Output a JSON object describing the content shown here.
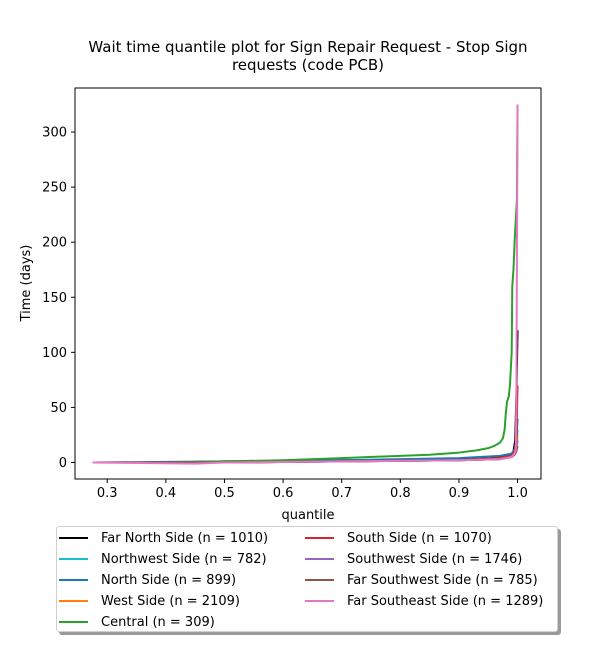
{
  "chart_data": {
    "type": "line",
    "title": "Wait time quantile plot for Sign Repair Request - Stop Sign",
    "title_line2": "requests (code PCB)",
    "xlabel": "quantile",
    "ylabel": "Time (days)",
    "xlim": [
      0.245,
      1.04
    ],
    "ylim": [
      -15,
      340
    ],
    "xticks": [
      0.3,
      0.4,
      0.5,
      0.6,
      0.7,
      0.8,
      0.9,
      1.0
    ],
    "xtick_labels": [
      "0.3",
      "0.4",
      "0.5",
      "0.6",
      "0.7",
      "0.8",
      "0.9",
      "1.0"
    ],
    "yticks": [
      0,
      50,
      100,
      150,
      200,
      250,
      300
    ],
    "ytick_labels": [
      "0",
      "50",
      "100",
      "150",
      "200",
      "250",
      "300"
    ],
    "grid": false,
    "legend_placement": "below plot, two columns",
    "series": [
      {
        "name": "Far North Side (n = 1010)",
        "color": "#000000",
        "x": [
          0.275,
          0.4,
          0.5,
          0.6,
          0.7,
          0.8,
          0.9,
          0.95,
          0.98,
          0.99,
          0.993,
          0.996,
          0.998,
          1.0
        ],
        "y": [
          0,
          0,
          1,
          1,
          2,
          2,
          3,
          4,
          6,
          8,
          10,
          20,
          60,
          120
        ]
      },
      {
        "name": "Northwest Side (n = 782)",
        "color": "#17becf",
        "x": [
          0.275,
          0.5,
          0.7,
          0.9,
          0.97,
          0.99,
          0.995,
          0.998,
          1.0
        ],
        "y": [
          0,
          0,
          1,
          2,
          3,
          5,
          8,
          15,
          30
        ]
      },
      {
        "name": "North Side (n = 899)",
        "color": "#1f77b4",
        "x": [
          0.275,
          0.5,
          0.7,
          0.9,
          0.97,
          0.99,
          0.995,
          0.998,
          1.0
        ],
        "y": [
          0,
          1,
          2,
          4,
          6,
          8,
          12,
          20,
          40
        ]
      },
      {
        "name": "West Side (n = 2109)",
        "color": "#ff7f0e",
        "x": [
          0.275,
          0.5,
          0.7,
          0.9,
          0.97,
          0.99,
          0.995,
          0.998,
          1.0
        ],
        "y": [
          0,
          0,
          1,
          2,
          4,
          6,
          9,
          14,
          25
        ]
      },
      {
        "name": "Central (n = 309)",
        "color": "#2ca02c",
        "x": [
          0.275,
          0.4,
          0.5,
          0.6,
          0.7,
          0.8,
          0.85,
          0.9,
          0.93,
          0.95,
          0.96,
          0.97,
          0.975,
          0.978,
          0.98,
          0.982,
          0.985,
          0.987,
          0.99,
          0.991,
          0.993,
          0.995,
          0.997,
          0.999,
          1.0
        ],
        "y": [
          0,
          0,
          1,
          2,
          4,
          6,
          7,
          9,
          11,
          13,
          15,
          18,
          22,
          30,
          45,
          55,
          60,
          70,
          100,
          160,
          175,
          200,
          220,
          240,
          325
        ]
      },
      {
        "name": "South Side (n = 1070)",
        "color": "#d62728",
        "x": [
          0.275,
          0.5,
          0.7,
          0.9,
          0.97,
          0.99,
          0.995,
          0.998,
          1.0
        ],
        "y": [
          0,
          0,
          1,
          2,
          4,
          6,
          10,
          20,
          70
        ]
      },
      {
        "name": "Southwest Side (n = 1746)",
        "color": "#9467bd",
        "x": [
          0.275,
          0.5,
          0.7,
          0.9,
          0.97,
          0.99,
          0.995,
          0.998,
          1.0
        ],
        "y": [
          0,
          0,
          1,
          2,
          3,
          5,
          8,
          12,
          20
        ]
      },
      {
        "name": "Far Southwest Side (n = 785)",
        "color": "#8c564b",
        "x": [
          0.275,
          0.5,
          0.7,
          0.9,
          0.97,
          0.99,
          0.995,
          0.998,
          1.0
        ],
        "y": [
          0,
          0,
          1,
          2,
          3,
          5,
          7,
          10,
          15
        ]
      },
      {
        "name": "Far Southeast Side (n = 1289)",
        "color": "#e377c2",
        "x": [
          0.275,
          0.45,
          0.5,
          0.7,
          0.9,
          0.97,
          0.99,
          0.995,
          0.997,
          0.998,
          0.999,
          1.0
        ],
        "y": [
          0,
          -1,
          0,
          1,
          2,
          3,
          5,
          8,
          12,
          60,
          200,
          325
        ]
      }
    ]
  }
}
